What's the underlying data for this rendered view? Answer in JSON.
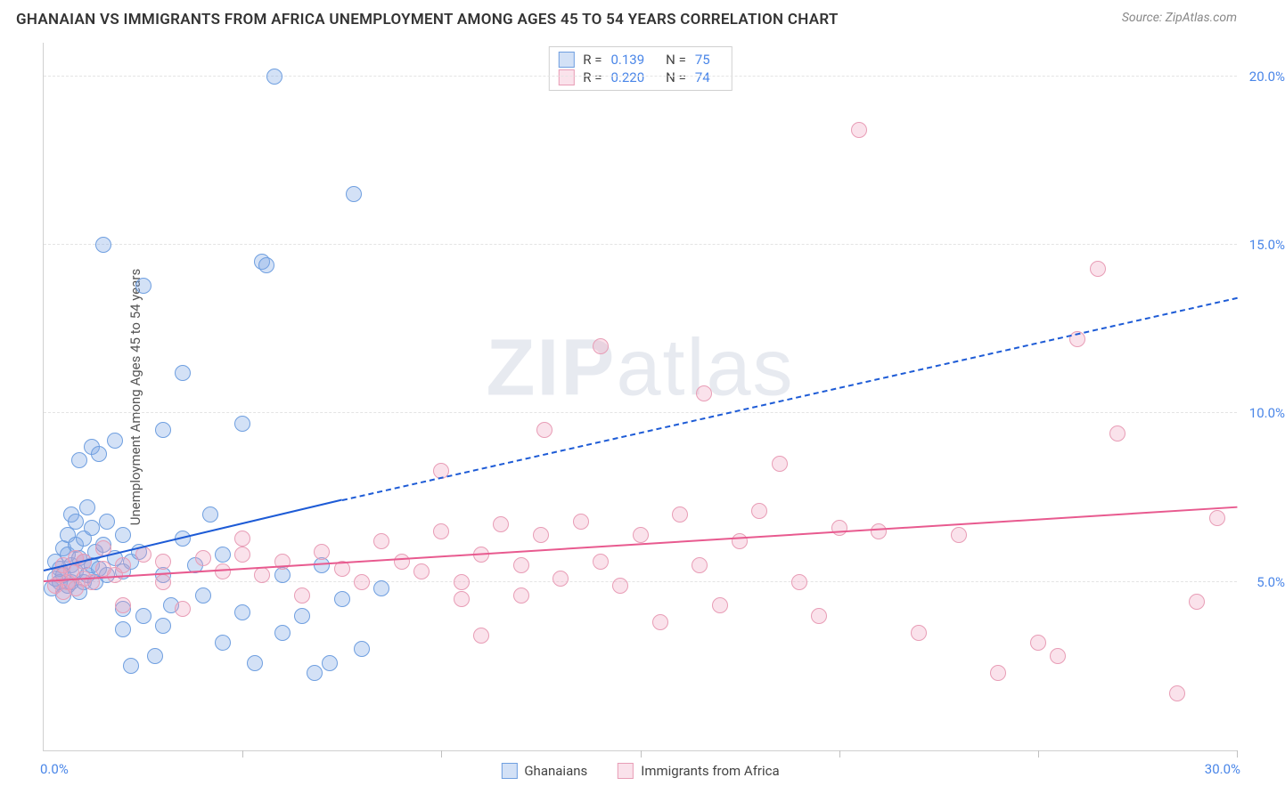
{
  "header": {
    "title": "GHANAIAN VS IMMIGRANTS FROM AFRICA UNEMPLOYMENT AMONG AGES 45 TO 54 YEARS CORRELATION CHART",
    "source": "Source: ZipAtlas.com"
  },
  "axis": {
    "ylabel": "Unemployment Among Ages 45 to 54 years",
    "x_min": 0,
    "x_max": 30,
    "y_min": 0,
    "y_max": 21,
    "x_origin_label": "0.0%",
    "x_end_label": "30.0%",
    "y_ticks": [
      5,
      10,
      15,
      20
    ],
    "y_tick_labels": [
      "5.0%",
      "10.0%",
      "15.0%",
      "20.0%"
    ],
    "x_tick_positions": [
      5,
      10,
      15,
      20,
      25,
      30
    ],
    "tick_label_color": "#4a86e8",
    "grid_color": "#e4e4e4"
  },
  "watermark": {
    "z": "ZIP",
    "rest": "atlas"
  },
  "series": {
    "a": {
      "label": "Ghanaians",
      "fill": "rgba(130,170,230,0.35)",
      "stroke": "#6f9fe0",
      "trend_color": "#1d5bd6",
      "marker_r": 9,
      "R": "0.139",
      "N": "75",
      "trend": {
        "x1": 0,
        "y1": 5.3,
        "x2_solid": 7.5,
        "y2_solid": 7.4,
        "x2_dash": 30,
        "y2_dash": 13.4
      },
      "points": [
        [
          0.2,
          4.8
        ],
        [
          0.3,
          5.1
        ],
        [
          0.3,
          5.6
        ],
        [
          0.4,
          5.0
        ],
        [
          0.4,
          5.4
        ],
        [
          0.5,
          4.6
        ],
        [
          0.5,
          5.2
        ],
        [
          0.5,
          6.0
        ],
        [
          0.6,
          4.9
        ],
        [
          0.6,
          5.8
        ],
        [
          0.6,
          6.4
        ],
        [
          0.7,
          5.0
        ],
        [
          0.7,
          5.5
        ],
        [
          0.7,
          7.0
        ],
        [
          0.8,
          5.3
        ],
        [
          0.8,
          6.1
        ],
        [
          0.8,
          6.8
        ],
        [
          0.9,
          4.7
        ],
        [
          0.9,
          5.7
        ],
        [
          0.9,
          8.6
        ],
        [
          1.0,
          5.0
        ],
        [
          1.0,
          5.6
        ],
        [
          1.0,
          6.3
        ],
        [
          1.1,
          5.2
        ],
        [
          1.1,
          7.2
        ],
        [
          1.2,
          5.5
        ],
        [
          1.2,
          6.6
        ],
        [
          1.2,
          9.0
        ],
        [
          1.3,
          5.0
        ],
        [
          1.3,
          5.9
        ],
        [
          1.4,
          5.4
        ],
        [
          1.4,
          8.8
        ],
        [
          1.5,
          6.1
        ],
        [
          1.5,
          15.0
        ],
        [
          1.6,
          5.2
        ],
        [
          1.6,
          6.8
        ],
        [
          1.8,
          5.7
        ],
        [
          1.8,
          9.2
        ],
        [
          2.0,
          3.6
        ],
        [
          2.0,
          4.2
        ],
        [
          2.0,
          5.3
        ],
        [
          2.0,
          6.4
        ],
        [
          2.2,
          2.5
        ],
        [
          2.2,
          5.6
        ],
        [
          2.4,
          5.9
        ],
        [
          2.5,
          4.0
        ],
        [
          2.5,
          13.8
        ],
        [
          2.8,
          2.8
        ],
        [
          3.0,
          3.7
        ],
        [
          3.0,
          5.2
        ],
        [
          3.0,
          9.5
        ],
        [
          3.2,
          4.3
        ],
        [
          3.5,
          6.3
        ],
        [
          3.5,
          11.2
        ],
        [
          3.8,
          5.5
        ],
        [
          4.0,
          4.6
        ],
        [
          4.2,
          7.0
        ],
        [
          4.5,
          3.2
        ],
        [
          4.5,
          5.8
        ],
        [
          5.0,
          4.1
        ],
        [
          5.0,
          9.7
        ],
        [
          5.3,
          2.6
        ],
        [
          5.5,
          14.5
        ],
        [
          5.6,
          14.4
        ],
        [
          5.8,
          20.0
        ],
        [
          6.0,
          3.5
        ],
        [
          6.0,
          5.2
        ],
        [
          6.5,
          4.0
        ],
        [
          6.8,
          2.3
        ],
        [
          7.0,
          5.5
        ],
        [
          7.2,
          2.6
        ],
        [
          7.5,
          4.5
        ],
        [
          7.8,
          16.5
        ],
        [
          8.0,
          3.0
        ],
        [
          8.5,
          4.8
        ]
      ]
    },
    "b": {
      "label": "Immigrants from Africa",
      "fill": "rgba(240,160,190,0.30)",
      "stroke": "#e89db6",
      "trend_color": "#e85a8f",
      "marker_r": 9,
      "R": "0.220",
      "N": "74",
      "trend": {
        "x1": 0,
        "y1": 5.0,
        "x2_solid": 30,
        "y2_solid": 7.2
      },
      "points": [
        [
          0.3,
          4.9
        ],
        [
          0.4,
          5.2
        ],
        [
          0.5,
          4.7
        ],
        [
          0.5,
          5.5
        ],
        [
          0.6,
          5.0
        ],
        [
          0.7,
          5.3
        ],
        [
          0.8,
          4.8
        ],
        [
          0.8,
          5.7
        ],
        [
          1.0,
          5.1
        ],
        [
          1.0,
          5.6
        ],
        [
          1.2,
          5.0
        ],
        [
          1.5,
          5.4
        ],
        [
          1.5,
          6.0
        ],
        [
          1.8,
          5.2
        ],
        [
          2.0,
          4.3
        ],
        [
          2.0,
          5.5
        ],
        [
          2.5,
          5.8
        ],
        [
          3.0,
          5.0
        ],
        [
          3.0,
          5.6
        ],
        [
          3.5,
          4.2
        ],
        [
          4.0,
          5.7
        ],
        [
          4.5,
          5.3
        ],
        [
          5.0,
          5.8
        ],
        [
          5.0,
          6.3
        ],
        [
          5.5,
          5.2
        ],
        [
          6.0,
          5.6
        ],
        [
          6.5,
          4.6
        ],
        [
          7.0,
          5.9
        ],
        [
          7.5,
          5.4
        ],
        [
          8.0,
          5.0
        ],
        [
          8.5,
          6.2
        ],
        [
          9.0,
          5.6
        ],
        [
          9.5,
          5.3
        ],
        [
          10.0,
          6.5
        ],
        [
          10.0,
          8.3
        ],
        [
          10.5,
          5.0
        ],
        [
          10.5,
          4.5
        ],
        [
          11.0,
          5.8
        ],
        [
          11.0,
          3.4
        ],
        [
          11.5,
          6.7
        ],
        [
          12.0,
          5.5
        ],
        [
          12.0,
          4.6
        ],
        [
          12.5,
          6.4
        ],
        [
          12.6,
          9.5
        ],
        [
          13.0,
          5.1
        ],
        [
          13.5,
          6.8
        ],
        [
          14.0,
          5.6
        ],
        [
          14.0,
          12.0
        ],
        [
          14.5,
          4.9
        ],
        [
          15.0,
          6.4
        ],
        [
          15.5,
          3.8
        ],
        [
          16.0,
          7.0
        ],
        [
          16.5,
          5.5
        ],
        [
          16.6,
          10.6
        ],
        [
          17.0,
          4.3
        ],
        [
          17.5,
          6.2
        ],
        [
          18.0,
          7.1
        ],
        [
          18.5,
          8.5
        ],
        [
          19.0,
          5.0
        ],
        [
          19.5,
          4.0
        ],
        [
          20.0,
          6.6
        ],
        [
          20.5,
          18.4
        ],
        [
          21.0,
          6.5
        ],
        [
          22.0,
          3.5
        ],
        [
          23.0,
          6.4
        ],
        [
          24.0,
          2.3
        ],
        [
          25.0,
          3.2
        ],
        [
          25.5,
          2.8
        ],
        [
          26.0,
          12.2
        ],
        [
          26.5,
          14.3
        ],
        [
          27.0,
          9.4
        ],
        [
          28.5,
          1.7
        ],
        [
          29.0,
          4.4
        ],
        [
          29.5,
          6.9
        ]
      ]
    }
  },
  "legend_labels": {
    "R": "R =",
    "N": "N ="
  }
}
